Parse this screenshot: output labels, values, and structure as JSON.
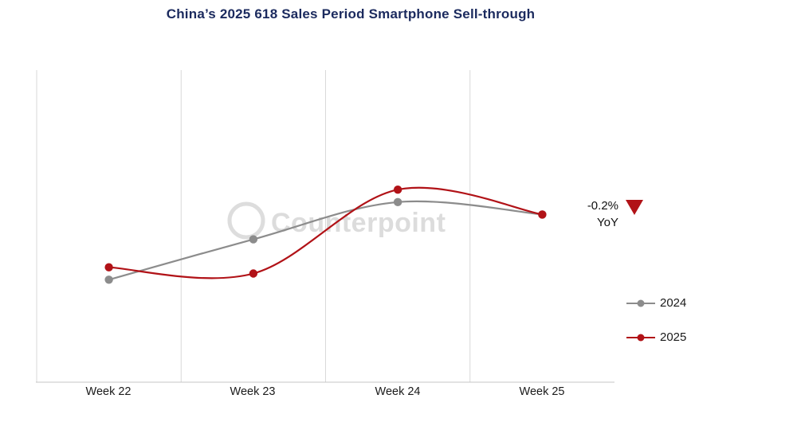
{
  "title": "China’s 2025 618 Sales Period Smartphone Sell-through",
  "watermark": "Counterpoint",
  "annotation": {
    "value": "-0.2%",
    "label": "YoY",
    "color": "#b11217"
  },
  "legend": [
    {
      "label": "2024",
      "color": "#8c8c8c"
    },
    {
      "label": "2025",
      "color": "#b11217"
    }
  ],
  "colors": {
    "title_navy": "#1b2a5e",
    "series_gray": "#8c8c8c",
    "accent_red": "#b11217",
    "gridline": "#d9d9d9",
    "axis_line": "#c4c4c4",
    "watermark": "#d9d9d9",
    "text_dark": "#1a1a1a"
  },
  "chart_data": {
    "type": "line",
    "title": "China’s 2025 618 Sales Period Smartphone Sell-through",
    "categories": [
      "Week 22",
      "Week 23",
      "Week 24",
      "Week 25"
    ],
    "series": [
      {
        "name": "2024",
        "color": "#8c8c8c",
        "values": [
          33,
          46,
          58,
          54
        ]
      },
      {
        "name": "2025",
        "color": "#b11217",
        "values": [
          37,
          35,
          62,
          54
        ]
      }
    ],
    "xlabel": "",
    "ylabel": "",
    "ylim": [
      0,
      100
    ],
    "y_axis_labels_shown": false,
    "grid": "vertical-band-edges",
    "curve": "smooth",
    "legend_position": "right-bottom",
    "annotation": "-0.2% YoY (red down triangle)"
  }
}
